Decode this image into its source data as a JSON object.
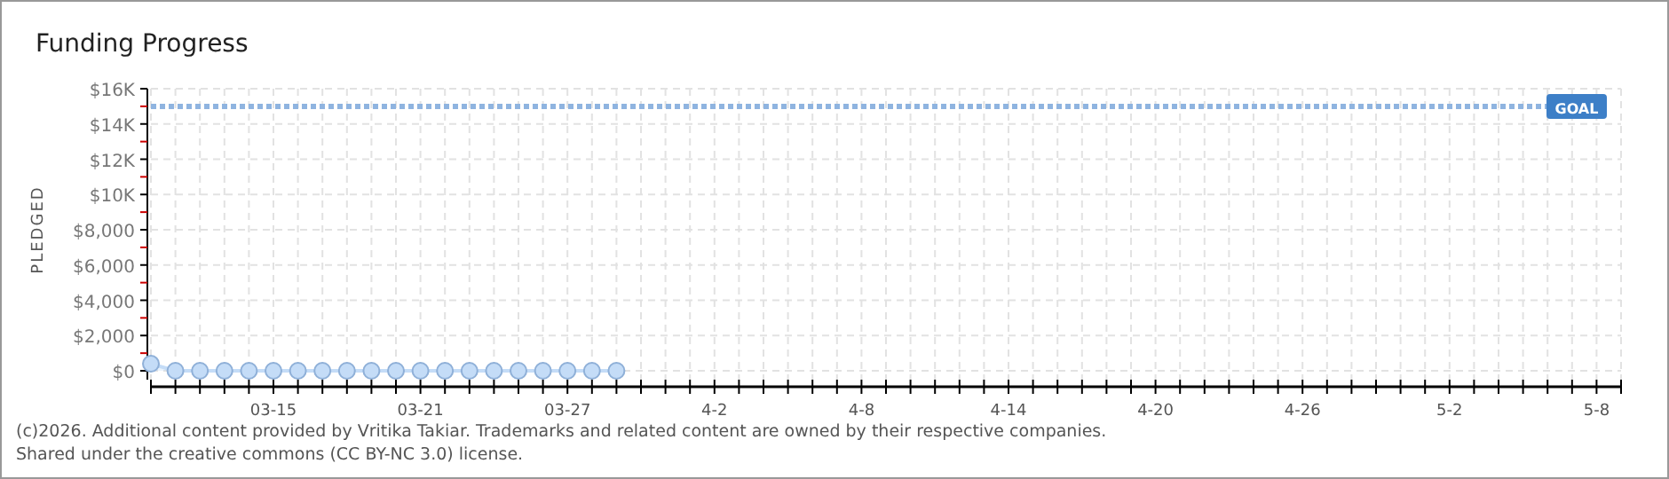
{
  "chart_data": {
    "type": "line",
    "title": "Funding Progress",
    "ylabel": "PLEDGED",
    "x": [
      "--03-10",
      "--03-11",
      "--03-12",
      "--03-13",
      "--03-14",
      "--03-15",
      "--03-16",
      "--03-17",
      "--03-18",
      "--03-19",
      "--03-20",
      "--03-21",
      "--03-22",
      "--03-23",
      "--03-24",
      "--03-25",
      "--03-26",
      "--03-27",
      "--03-28",
      "--03-29"
    ],
    "series": [
      {
        "color": "#c4dcf7",
        "values": [
          400,
          0,
          0,
          0,
          0,
          0,
          0,
          0,
          0,
          0,
          0,
          0,
          0,
          0,
          0,
          0,
          0,
          0,
          0,
          0
        ]
      }
    ],
    "marker": "circle",
    "grid": true,
    "xlim": [
      "--03-10",
      "--05-09"
    ],
    "xticks": [
      {
        "value": "--03-10",
        "label": null
      },
      {
        "value": "--03-11",
        "label": null
      },
      {
        "value": "--03-12",
        "label": null
      },
      {
        "value": "--03-13",
        "label": null
      },
      {
        "value": "--03-14",
        "label": null
      },
      {
        "value": "--03-15",
        "label": "03-15"
      },
      {
        "value": "--03-16",
        "label": null
      },
      {
        "value": "--03-17",
        "label": null
      },
      {
        "value": "--03-18",
        "label": null
      },
      {
        "value": "--03-19",
        "label": null
      },
      {
        "value": "--03-20",
        "label": null
      },
      {
        "value": "--03-21",
        "label": "03-21"
      },
      {
        "value": "--03-22",
        "label": null
      },
      {
        "value": "--03-23",
        "label": null
      },
      {
        "value": "--03-24",
        "label": null
      },
      {
        "value": "--03-25",
        "label": null
      },
      {
        "value": "--03-26",
        "label": null
      },
      {
        "value": "--03-27",
        "label": "03-27"
      },
      {
        "value": "--03-28",
        "label": null
      },
      {
        "value": "--03-29",
        "label": null
      },
      {
        "value": "--03-30",
        "label": null
      },
      {
        "value": "--03-31",
        "label": null
      },
      {
        "value": "--04-01",
        "label": null
      },
      {
        "value": "--04-02",
        "label": "4-2"
      },
      {
        "value": "--04-03",
        "label": null
      },
      {
        "value": "--04-04",
        "label": null
      },
      {
        "value": "--04-05",
        "label": null
      },
      {
        "value": "--04-06",
        "label": null
      },
      {
        "value": "--04-07",
        "label": null
      },
      {
        "value": "--04-08",
        "label": "4-8"
      },
      {
        "value": "--04-09",
        "label": null
      },
      {
        "value": "--04-10",
        "label": null
      },
      {
        "value": "--04-11",
        "label": null
      },
      {
        "value": "--04-12",
        "label": null
      },
      {
        "value": "--04-13",
        "label": null
      },
      {
        "value": "--04-14",
        "label": "4-14"
      },
      {
        "value": "--04-15",
        "label": null
      },
      {
        "value": "--04-16",
        "label": null
      },
      {
        "value": "--04-17",
        "label": null
      },
      {
        "value": "--04-18",
        "label": null
      },
      {
        "value": "--04-19",
        "label": null
      },
      {
        "value": "--04-20",
        "label": "4-20"
      },
      {
        "value": "--04-21",
        "label": null
      },
      {
        "value": "--04-22",
        "label": null
      },
      {
        "value": "--04-23",
        "label": null
      },
      {
        "value": "--04-24",
        "label": null
      },
      {
        "value": "--04-25",
        "label": null
      },
      {
        "value": "--04-26",
        "label": "4-26"
      },
      {
        "value": "--04-27",
        "label": null
      },
      {
        "value": "--04-28",
        "label": null
      },
      {
        "value": "--04-29",
        "label": null
      },
      {
        "value": "--04-30",
        "label": null
      },
      {
        "value": "--05-01",
        "label": null
      },
      {
        "value": "--05-02",
        "label": "5-2"
      },
      {
        "value": "--05-03",
        "label": null
      },
      {
        "value": "--05-04",
        "label": null
      },
      {
        "value": "--05-05",
        "label": null
      },
      {
        "value": "--05-06",
        "label": null
      },
      {
        "value": "--05-07",
        "label": null
      },
      {
        "value": "--05-08",
        "label": "5-8"
      },
      {
        "value": "--05-09",
        "label": null
      }
    ],
    "ylim": [
      0,
      16000
    ],
    "yticks": [
      {
        "value": 0,
        "label": "$0"
      },
      {
        "value": 1000,
        "label": null
      },
      {
        "value": 2000,
        "label": "$2,000"
      },
      {
        "value": 3000,
        "label": null
      },
      {
        "value": 4000,
        "label": "$4,000"
      },
      {
        "value": 5000,
        "label": null
      },
      {
        "value": 6000,
        "label": "$6,000"
      },
      {
        "value": 7000,
        "label": null
      },
      {
        "value": 8000,
        "label": "$8,000"
      },
      {
        "value": 9000,
        "label": null
      },
      {
        "value": 10000,
        "label": "$10K"
      },
      {
        "value": 11000,
        "label": null
      },
      {
        "value": 12000,
        "label": "$12K"
      },
      {
        "value": 13000,
        "label": null
      },
      {
        "value": 14000,
        "label": "$14K"
      },
      {
        "value": 15000,
        "label": null
      },
      {
        "value": 16000,
        "label": "$16K"
      }
    ],
    "ref_lines": [
      {
        "axis": "y",
        "value": 15000,
        "label": "GOAL",
        "color": "#8fb4e0",
        "line_style": "dotted"
      }
    ],
    "annotations": [
      "(c)2026. Additional content provided by Vritika Takiar. Trademarks and related content are owned by their respective companies.",
      "Shared under the creative commons (CC BY-NC 3.0) license."
    ]
  }
}
